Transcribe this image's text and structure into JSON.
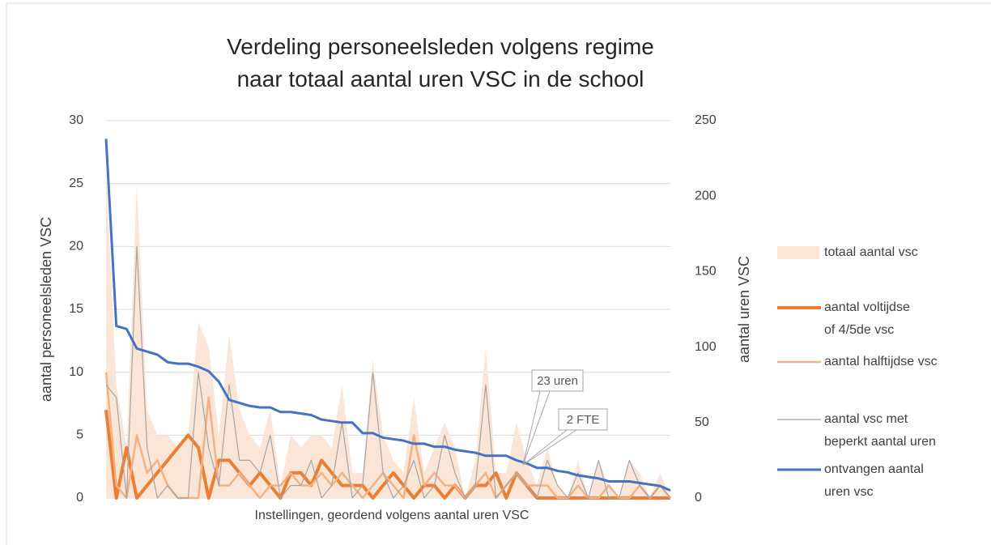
{
  "chart_data": {
    "type": "line",
    "title": "Verdeling personeelsleden volgens regime\nnaar totaal aantal uren VSC in de school",
    "x_label": "Instellingen, geordend volgens aantal uren VSC",
    "y_label": "aantal personeelsleden VSC",
    "y2_label": "aantal uren VSC",
    "categories": [
      null,
      null,
      null,
      null,
      null,
      null,
      null,
      null,
      null,
      null,
      null,
      null,
      null,
      null,
      null,
      null,
      null,
      null,
      null,
      null,
      null,
      null,
      null,
      null,
      null,
      null,
      null,
      null,
      null,
      null,
      null,
      null,
      null,
      null,
      null,
      null,
      null,
      null,
      null,
      null,
      null,
      null,
      null,
      null,
      null,
      null,
      null,
      null,
      null,
      null,
      null,
      null,
      null,
      null,
      null,
      null
    ],
    "ylim": [
      0,
      30
    ],
    "yticks": [
      0,
      5,
      10,
      15,
      20,
      25,
      30
    ],
    "y2lim": [
      0,
      250
    ],
    "y2ticks": [
      0,
      50,
      100,
      150,
      200,
      250
    ],
    "grid": true,
    "legend": "right",
    "annotations": [
      "23 uren",
      "2 FTE"
    ],
    "series": [
      {
        "name": "totaal aantal vsc",
        "color": "#fbe5d6",
        "style": "area",
        "values": [
          26,
          9,
          4,
          25,
          7,
          5,
          5,
          4,
          5,
          14,
          12,
          5,
          13,
          7,
          5,
          4,
          7,
          1,
          5,
          4,
          5,
          5,
          4,
          9,
          2,
          2,
          11,
          5,
          3,
          2,
          8,
          2,
          4,
          6,
          4,
          0,
          3,
          12,
          2,
          2,
          6,
          3,
          1,
          4,
          1,
          0,
          3,
          0,
          3,
          1,
          0,
          3,
          2,
          0,
          2,
          0
        ]
      },
      {
        "name": "aantal voltijdse\nof 4/5de vsc",
        "color": "#ed7d31",
        "style": "line",
        "width": 4,
        "values": [
          7,
          0,
          4,
          0,
          1,
          2,
          3,
          4,
          5,
          4,
          0,
          3,
          3,
          2,
          1,
          2,
          1,
          0,
          2,
          2,
          1,
          3,
          2,
          1,
          1,
          1,
          0,
          1,
          2,
          1,
          0,
          1,
          1,
          0,
          1,
          0,
          1,
          1,
          2,
          0,
          2,
          1,
          0,
          0,
          0,
          0,
          0,
          0,
          0,
          0,
          0,
          0,
          0,
          0,
          0,
          0
        ]
      },
      {
        "name": "aantal halftijdse vsc",
        "color": "#f4b183",
        "style": "line",
        "width": 2.5,
        "values": [
          10,
          1,
          0,
          5,
          2,
          3,
          1,
          0,
          0,
          0,
          8,
          1,
          1,
          2,
          1,
          0,
          1,
          1,
          2,
          1,
          1,
          2,
          1,
          2,
          1,
          0,
          1,
          2,
          1,
          0,
          5,
          1,
          2,
          1,
          1,
          0,
          1,
          2,
          0,
          1,
          2,
          1,
          1,
          1,
          0,
          0,
          1,
          0,
          0,
          1,
          0,
          0,
          1,
          0,
          1,
          0
        ]
      },
      {
        "name": "aantal vsc met\nbeperkt aantal uren",
        "color": "#a5a5a5",
        "style": "line",
        "width": 1.2,
        "values": [
          9,
          8,
          0,
          20,
          4,
          0,
          1,
          0,
          0,
          10,
          4,
          1,
          9,
          3,
          3,
          2,
          5,
          0,
          1,
          1,
          3,
          0,
          1,
          6,
          0,
          1,
          10,
          2,
          0,
          1,
          3,
          0,
          1,
          5,
          2,
          0,
          1,
          9,
          0,
          1,
          2,
          1,
          0,
          3,
          1,
          0,
          2,
          0,
          3,
          0,
          0,
          3,
          1,
          0,
          1,
          0
        ]
      },
      {
        "name": "ontvangen aantal\nuren vsc",
        "color": "#4472c4",
        "style": "line",
        "width": 3,
        "axis": "y2",
        "values": [
          238,
          114,
          112,
          99,
          97,
          95,
          90,
          89,
          89,
          87,
          84,
          77,
          65,
          63,
          61,
          60,
          60,
          57,
          57,
          56,
          55,
          52,
          51,
          50,
          50,
          43,
          43,
          40,
          39,
          38,
          36,
          36,
          34,
          34,
          32,
          31,
          30,
          28,
          28,
          28,
          25,
          23,
          20,
          20,
          18,
          17,
          15,
          14,
          13,
          11,
          11,
          11,
          10,
          9,
          8,
          5
        ]
      }
    ]
  }
}
